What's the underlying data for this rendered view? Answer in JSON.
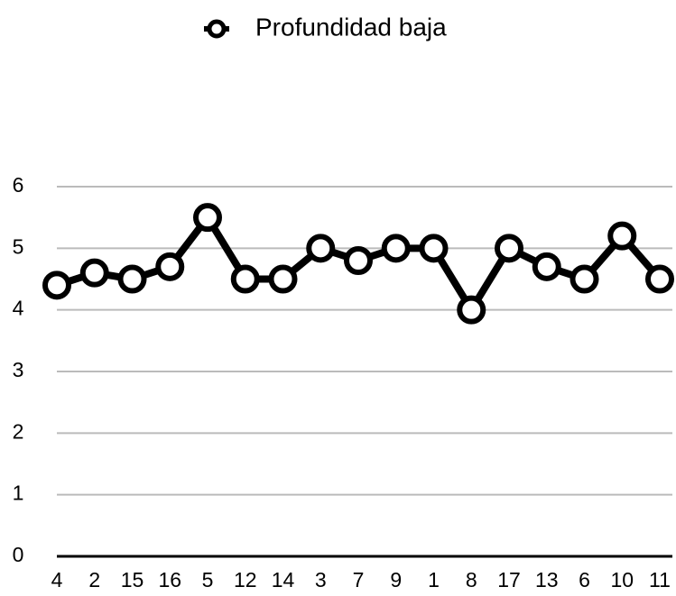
{
  "chart_data": {
    "type": "line",
    "categories": [
      "4",
      "2",
      "15",
      "16",
      "5",
      "12",
      "14",
      "3",
      "7",
      "9",
      "1",
      "8",
      "17",
      "13",
      "6",
      "10",
      "11"
    ],
    "series": [
      {
        "name": "Profundidad baja",
        "color": "#000000",
        "values": [
          4.4,
          4.6,
          4.5,
          4.7,
          5.5,
          4.5,
          4.5,
          5.0,
          4.8,
          5.0,
          5.0,
          4.0,
          5.0,
          4.7,
          4.5,
          5.2,
          4.5
        ]
      }
    ],
    "ylim": [
      0,
      6
    ],
    "yticks": [
      0,
      1,
      2,
      3,
      4,
      5,
      6
    ],
    "grid": true,
    "legend": "top"
  }
}
